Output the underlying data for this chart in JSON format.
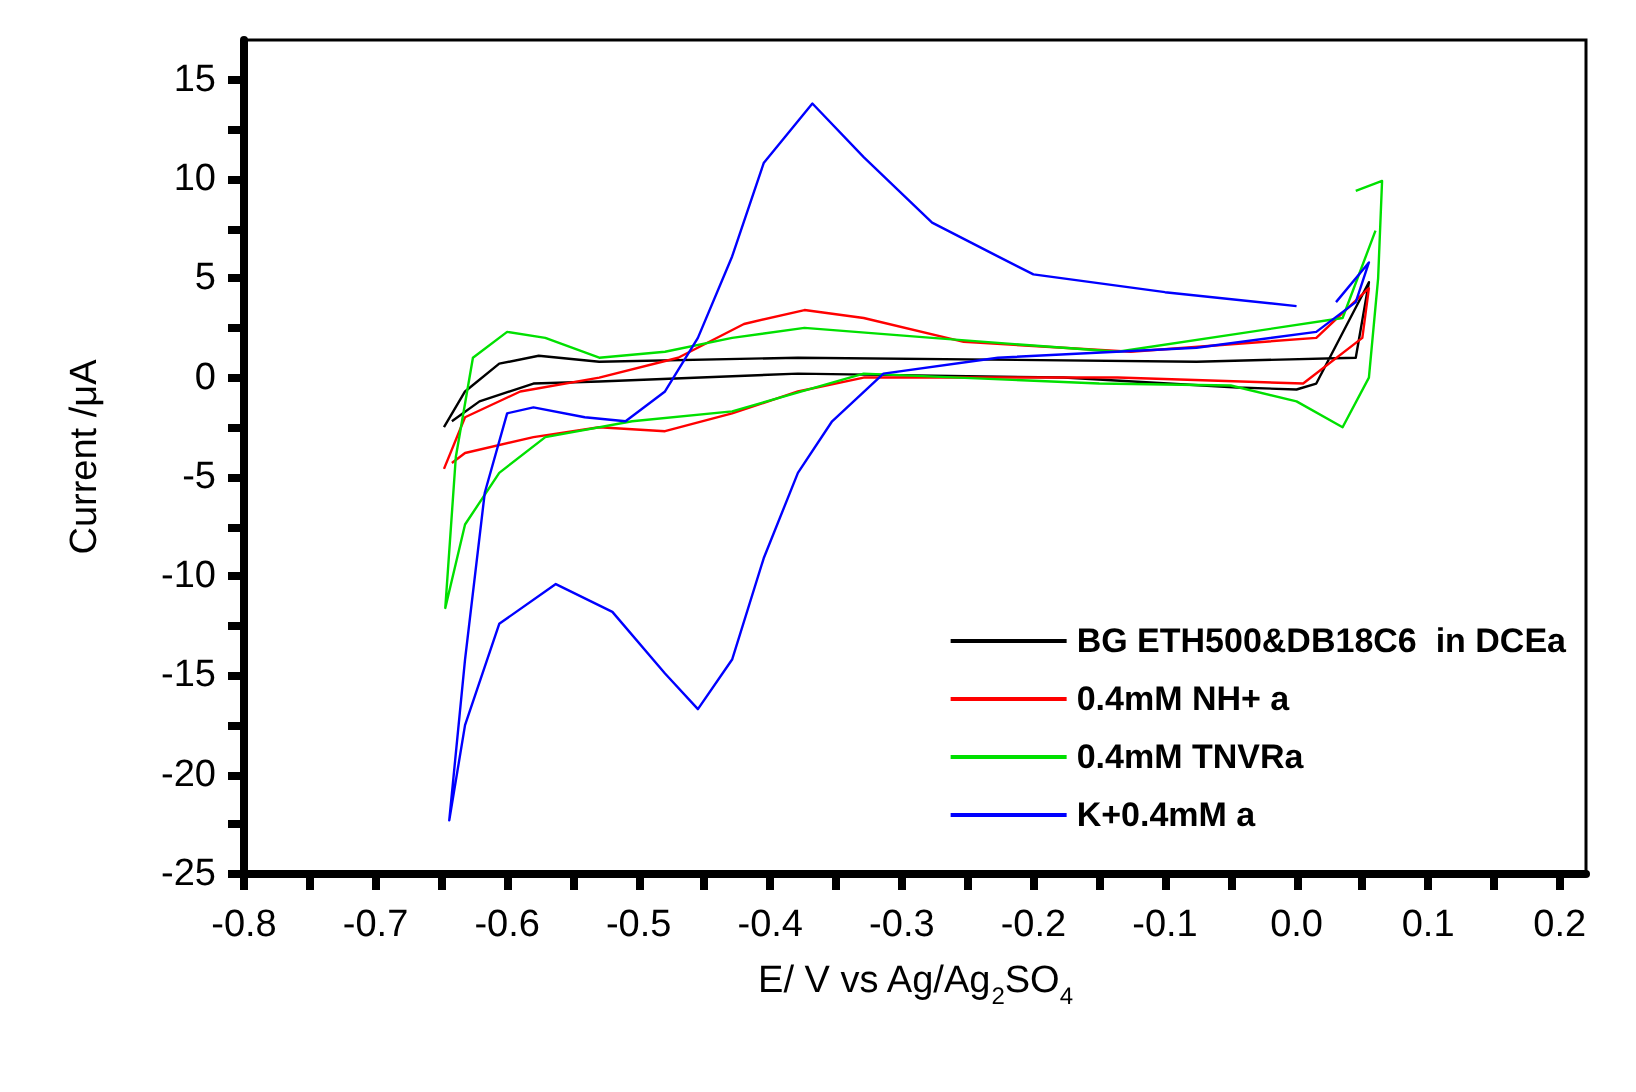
{
  "chart_data": {
    "type": "line",
    "xlabel": "E/ V vs Ag/Ag$_{2}$SO$_{4}$",
    "ylabel": "Current /μA",
    "xlim": [
      -0.8,
      0.22
    ],
    "ylim": [
      -25,
      17
    ],
    "xticks": [
      -0.8,
      -0.7,
      -0.6,
      -0.5,
      -0.4,
      -0.3,
      -0.2,
      -0.1,
      {
        "value": 0,
        "label": "0.0"
      },
      0.1,
      0.2
    ],
    "yticks": [
      -25,
      -20,
      -15,
      -10,
      -5,
      0,
      5,
      10,
      15
    ],
    "grid": false,
    "legend": "bottom right",
    "marker": "none",
    "line_style": "solid",
    "series": [
      {
        "name": "BG ETH500&DB18C6  in DCEa",
        "color": "#000000",
        "x": [
          -0.648,
          -0.632,
          -0.606,
          -0.576,
          -0.53,
          -0.379,
          -0.076,
          0.045,
          0.055,
          0.015,
          0.0,
          -0.045,
          -0.177,
          -0.379,
          -0.53,
          -0.58,
          -0.621,
          -0.642
        ],
        "values": [
          -2.5,
          -0.7,
          0.7,
          1.1,
          0.8,
          1.0,
          0.8,
          1.0,
          4.8,
          -0.3,
          -0.6,
          -0.5,
          0,
          0.2,
          -0.2,
          -0.3,
          -1.2,
          -2.2
        ]
      },
      {
        "name": "0.4mM NH+ a",
        "color": "#ff0000",
        "x": [
          -0.648,
          -0.632,
          -0.59,
          -0.53,
          -0.47,
          -0.42,
          -0.374,
          -0.329,
          -0.253,
          -0.126,
          0.015,
          0.055,
          0.05,
          0.005,
          -0.136,
          -0.329,
          -0.379,
          -0.429,
          -0.48,
          -0.53,
          -0.58,
          -0.632,
          -0.642
        ],
        "values": [
          -4.6,
          -2.0,
          -0.7,
          0,
          1.0,
          2.7,
          3.4,
          3.0,
          1.8,
          1.3,
          2.0,
          4.5,
          2.0,
          -0.3,
          0,
          0,
          -0.7,
          -1.8,
          -2.7,
          -2.5,
          -3.0,
          -3.8,
          -4.3
        ]
      },
      {
        "name": "0.4mM TNVRa",
        "color": "#00e000",
        "x": [
          0.045,
          0.065,
          0.062,
          0.055,
          0.035,
          0.0,
          -0.05,
          -0.15,
          -0.329,
          -0.429,
          -0.505,
          -0.571,
          -0.606,
          -0.632,
          -0.647,
          -0.639,
          -0.626,
          -0.6,
          -0.571,
          -0.53,
          -0.48,
          -0.429,
          -0.374,
          -0.277,
          -0.177,
          -0.136,
          0.035,
          0.06
        ],
        "values": [
          9.4,
          9.9,
          5.0,
          0,
          -2.5,
          -1.2,
          -0.4,
          -0.3,
          0.2,
          -1.7,
          -2.2,
          -3.0,
          -4.8,
          -7.4,
          -11.6,
          -4.0,
          1.0,
          2.3,
          2.0,
          1.0,
          1.3,
          2.0,
          2.5,
          2.0,
          1.5,
          1.3,
          3.0,
          7.4
        ]
      },
      {
        "name": "K+0.4mM a",
        "color": "#0000ff",
        "x": [
          0.0,
          -0.1,
          -0.2,
          -0.227,
          -0.277,
          -0.329,
          -0.368,
          -0.405,
          -0.429,
          -0.455,
          -0.48,
          -0.51,
          -0.541,
          -0.58,
          -0.6,
          -0.617,
          -0.632,
          -0.644,
          -0.632,
          -0.606,
          -0.563,
          -0.52,
          -0.48,
          -0.455,
          -0.429,
          -0.405,
          -0.379,
          -0.353,
          -0.314,
          -0.227,
          -0.076,
          0.015,
          0.045,
          0.055,
          0.03
        ],
        "values": [
          3.6,
          4.3,
          5.2,
          6.1,
          7.8,
          11.1,
          13.8,
          10.8,
          6.1,
          2.0,
          -0.7,
          -2.2,
          -2.0,
          -1.5,
          -1.8,
          -5.8,
          -14.2,
          -22.3,
          -17.5,
          -12.4,
          -10.4,
          -11.8,
          -14.9,
          -16.7,
          -14.2,
          -9.1,
          -4.8,
          -2.2,
          0.2,
          1.0,
          1.5,
          2.3,
          3.8,
          5.8,
          3.8
        ]
      }
    ]
  }
}
